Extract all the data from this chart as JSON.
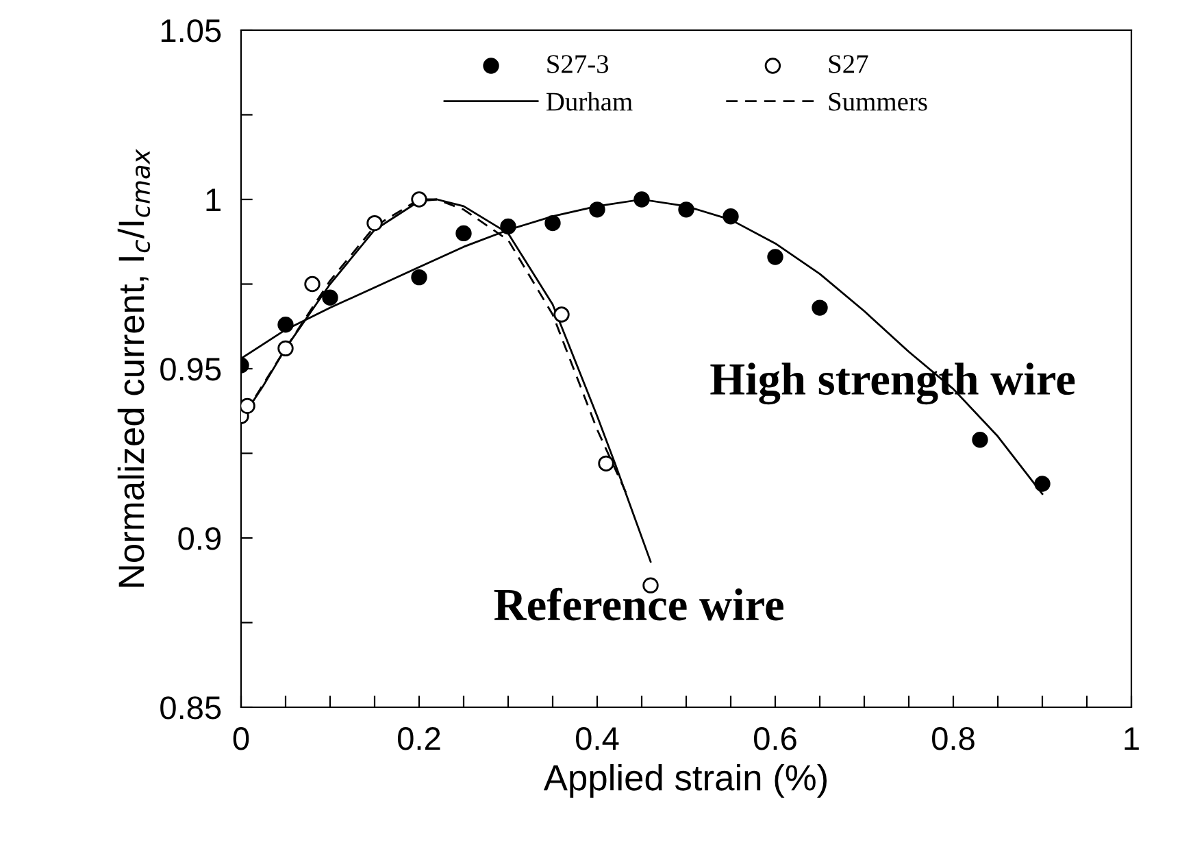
{
  "chart_data": {
    "type": "scatter",
    "xlabel": "Applied strain (%)",
    "ylabel": "Normalized current, I$_{c}$/I$_{cmax}$",
    "xlim": [
      0,
      1
    ],
    "ylim": [
      0.85,
      1.05
    ],
    "xticks": [
      0,
      {
        "value": 0.05,
        "label": null
      },
      0.2,
      {
        "value": 0.1,
        "label": null
      },
      {
        "value": 0.15,
        "label": null
      },
      {
        "value": 0.25,
        "label": null
      },
      {
        "value": 0.3,
        "label": null
      },
      {
        "value": 0.35,
        "label": null
      },
      0.4,
      {
        "value": 0.45,
        "label": null
      },
      {
        "value": 0.5,
        "label": null
      },
      {
        "value": 0.55,
        "label": null
      },
      0.6,
      {
        "value": 0.65,
        "label": null
      },
      {
        "value": 0.7,
        "label": null
      },
      {
        "value": 0.75,
        "label": null
      },
      0.8,
      {
        "value": 0.85,
        "label": null
      },
      {
        "value": 0.9,
        "label": null
      },
      {
        "value": 0.95,
        "label": null
      },
      1
    ],
    "yticks": [
      0.85,
      {
        "value": 0.875,
        "label": null
      },
      0.9,
      {
        "value": 0.925,
        "label": null
      },
      0.95,
      {
        "value": 0.975,
        "label": null
      },
      1,
      {
        "value": 1.025,
        "label": null
      },
      1.05
    ],
    "grid": false,
    "legend": "top",
    "series": [
      {
        "name": "S27-3",
        "marker": "circle",
        "color": "#000000",
        "x": [
          0,
          0.05,
          0.1,
          0.2,
          0.25,
          0.3,
          0.35,
          0.4,
          0.45,
          0.5,
          0.55,
          0.6,
          0.65,
          0.83,
          0.9
        ],
        "values": [
          0.951,
          0.963,
          0.971,
          0.977,
          0.99,
          0.992,
          0.993,
          0.997,
          1.0,
          0.997,
          0.995,
          0.983,
          0.968,
          0.929,
          0.916
        ]
      },
      {
        "name": "S27",
        "marker": "circle",
        "color": "#ffffff",
        "x": [
          0,
          0.007,
          0.05,
          0.08,
          0.15,
          0.2,
          0.36,
          0.41,
          0.46
        ],
        "values": [
          0.936,
          0.939,
          0.956,
          0.975,
          0.993,
          1.0,
          0.966,
          0.922,
          0.886
        ]
      },
      {
        "name": "Durham",
        "type": "line",
        "line_style": "solid",
        "color": "#000000",
        "x": [
          0,
          0.05,
          0.1,
          0.15,
          0.2,
          0.25,
          0.3,
          0.35,
          0.4,
          0.45,
          0.5,
          0.55,
          0.6,
          0.65,
          0.7,
          0.75,
          0.8,
          0.85,
          0.9
        ],
        "values": [
          0.953,
          0.9615,
          0.968,
          0.974,
          0.98,
          0.986,
          0.991,
          0.995,
          0.998,
          1.0,
          0.998,
          0.994,
          0.987,
          0.978,
          0.967,
          0.955,
          0.944,
          0.93,
          0.913
        ]
      },
      {
        "type": "line",
        "line_style": "solid",
        "color": "#000000",
        "x": [
          0,
          0.025,
          0.05,
          0.1,
          0.15,
          0.2,
          0.22,
          0.25,
          0.3,
          0.35,
          0.4,
          0.42,
          0.46
        ],
        "values": [
          0.935,
          0.945,
          0.956,
          0.975,
          0.991,
          0.9995,
          1.0,
          0.998,
          0.99,
          0.969,
          0.936,
          0.922,
          0.893
        ]
      },
      {
        "name": "Summers",
        "type": "line",
        "line_style": "dashed",
        "color": "#000000",
        "x": [
          0.005,
          0.05,
          0.1,
          0.15,
          0.2,
          0.22,
          0.25,
          0.3,
          0.35,
          0.4,
          0.433
        ],
        "values": [
          0.937,
          0.956,
          0.976,
          0.992,
          1.0,
          1.0,
          0.997,
          0.988,
          0.966,
          0.932,
          0.913
        ]
      }
    ],
    "annotations": [
      "High strength wire",
      "Reference wire"
    ]
  }
}
